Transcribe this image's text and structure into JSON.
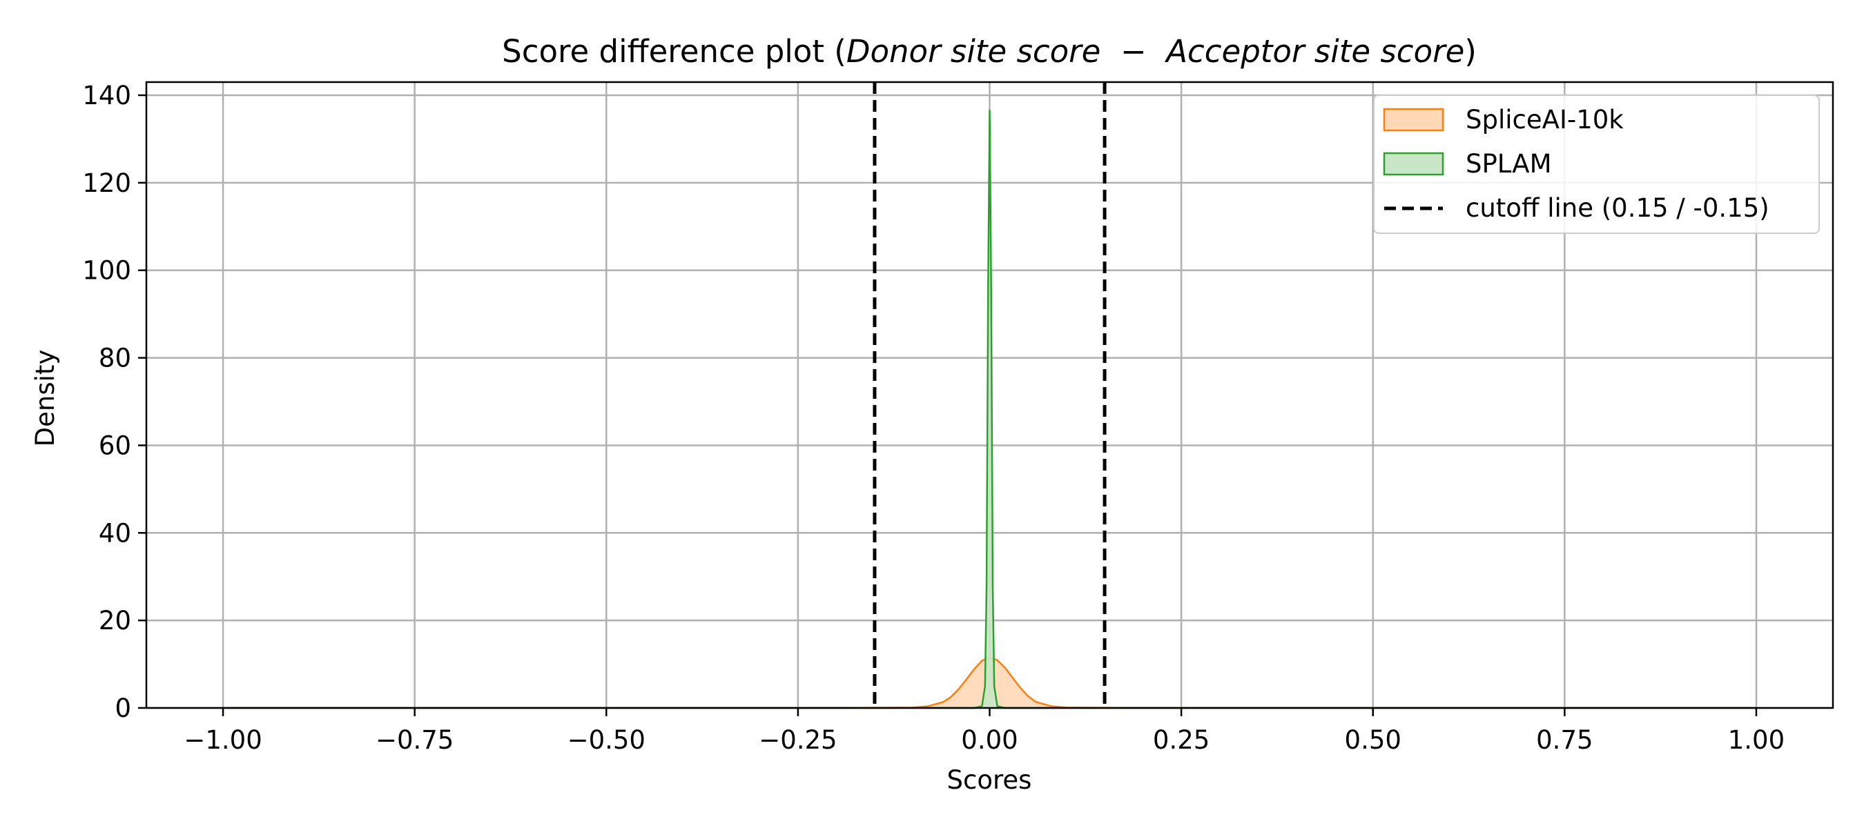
{
  "chart_data": {
    "type": "area",
    "title": {
      "prefix": "Score difference plot (",
      "italic": "Donor site score  −  Acceptor site score",
      "suffix": ")"
    },
    "xlabel": "Scores",
    "ylabel": "Density",
    "xlim": [
      -1.1,
      1.1
    ],
    "ylim": [
      0,
      143
    ],
    "xticks": [
      -1.0,
      -0.75,
      -0.5,
      -0.25,
      0.0,
      0.25,
      0.5,
      0.75,
      1.0
    ],
    "xtick_labels": [
      "−1.00",
      "−0.75",
      "−0.50",
      "−0.25",
      "0.00",
      "0.25",
      "0.50",
      "0.75",
      "1.00"
    ],
    "yticks": [
      0,
      20,
      40,
      60,
      80,
      100,
      120,
      140
    ],
    "ytick_labels": [
      "0",
      "20",
      "40",
      "60",
      "80",
      "100",
      "120",
      "140"
    ],
    "grid": true,
    "legend_position": "top-right",
    "series": [
      {
        "name": "SpliceAI-10k",
        "kind": "density",
        "color": "#ff7f0e",
        "fill": "#ffd8b6",
        "x": [
          -1.0,
          -0.5,
          -0.2,
          -0.1,
          -0.08,
          -0.06,
          -0.05,
          -0.04,
          -0.03,
          -0.02,
          -0.01,
          0.0,
          0.01,
          0.02,
          0.03,
          0.04,
          0.05,
          0.06,
          0.08,
          0.1,
          0.2,
          0.5,
          1.0
        ],
        "y": [
          0.0,
          0.0,
          0.0,
          0.1,
          0.4,
          1.4,
          2.6,
          4.4,
          6.6,
          8.9,
          10.8,
          11.6,
          10.9,
          9.2,
          6.9,
          4.6,
          2.7,
          1.4,
          0.4,
          0.1,
          0.0,
          0.0,
          0.0
        ]
      },
      {
        "name": "SPLAM",
        "kind": "density",
        "color": "#2ca02c",
        "fill": "#c9e6c7",
        "x": [
          -1.0,
          -0.2,
          -0.02,
          -0.01,
          -0.006,
          -0.004,
          -0.002,
          0.0,
          0.002,
          0.004,
          0.006,
          0.01,
          0.02,
          0.2,
          1.0
        ],
        "y": [
          0.0,
          0.0,
          0.0,
          0.4,
          5.0,
          28.0,
          96.0,
          136.5,
          96.0,
          28.0,
          5.0,
          0.4,
          0.0,
          0.0,
          0.0
        ]
      }
    ],
    "cutoff_lines": {
      "name": "cutoff line (0.15 / -0.15)",
      "x": [
        -0.15,
        0.15
      ],
      "color": "#000000",
      "style": "dashed"
    }
  }
}
